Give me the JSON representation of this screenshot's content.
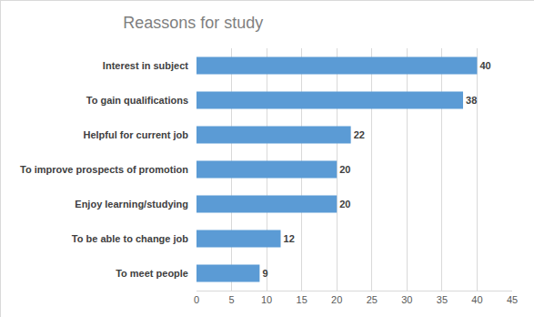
{
  "chart_data": {
    "type": "bar",
    "title": "Reassons for study",
    "orientation": "horizontal",
    "categories": [
      "Interest in subject",
      "To gain qualifications",
      "Helpful for current job",
      "To improve prospects of promotion",
      "Enjoy learning/studying",
      "To be able to change job",
      "To meet people"
    ],
    "values": [
      40,
      38,
      22,
      20,
      20,
      12,
      9
    ],
    "color": "#5b9bd5",
    "xlim": [
      0,
      45
    ],
    "xticks": [
      0,
      5,
      10,
      15,
      20,
      25,
      30,
      35,
      40,
      45
    ],
    "grid": true,
    "data_labels": true
  }
}
